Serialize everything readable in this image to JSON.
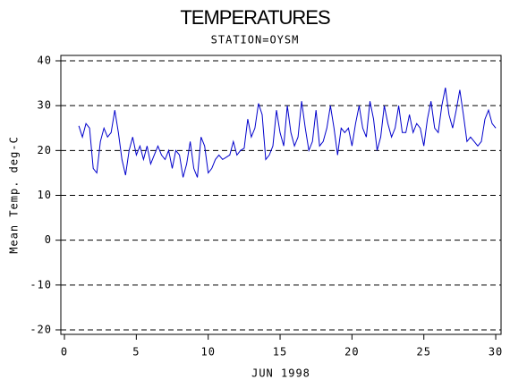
{
  "chart_data": {
    "type": "line",
    "title": "TEMPERATURES",
    "subtitle": "STATION=OYSM",
    "x_label": "JUN 1998",
    "y_label": "Mean Temp. deg-C",
    "xlim": [
      -0.25,
      30.37
    ],
    "ylim": [
      -21,
      41.2
    ],
    "xticks": [
      0,
      5,
      10,
      15,
      20,
      25,
      30
    ],
    "yticks": [
      -20,
      -10,
      0,
      10,
      20,
      30,
      40
    ],
    "grid": true,
    "series": [
      {
        "color": "#0000cc",
        "x": [
          1,
          1.25,
          1.5,
          1.75,
          2,
          2.25,
          2.5,
          2.75,
          3,
          3.25,
          3.5,
          3.75,
          4,
          4.25,
          4.5,
          4.75,
          5,
          5.25,
          5.5,
          5.75,
          6,
          6.25,
          6.5,
          6.75,
          7,
          7.25,
          7.5,
          7.75,
          8,
          8.25,
          8.5,
          8.75,
          9,
          9.25,
          9.5,
          9.75,
          10,
          10.25,
          10.5,
          10.75,
          11,
          11.25,
          11.5,
          11.75,
          12,
          12.25,
          12.5,
          12.75,
          13,
          13.25,
          13.5,
          13.75,
          14,
          14.25,
          14.5,
          14.75,
          15,
          15.25,
          15.5,
          15.75,
          16,
          16.25,
          16.5,
          16.75,
          17,
          17.25,
          17.5,
          17.75,
          18,
          18.25,
          18.5,
          18.75,
          19,
          19.25,
          19.5,
          19.75,
          20,
          20.25,
          20.5,
          20.75,
          21,
          21.25,
          21.5,
          21.75,
          22,
          22.25,
          22.5,
          22.75,
          23,
          23.25,
          23.5,
          23.75,
          24,
          24.25,
          24.5,
          24.75,
          25,
          25.25,
          25.5,
          25.75,
          26,
          26.25,
          26.5,
          26.75,
          27,
          27.25,
          27.5,
          27.75,
          28,
          28.25,
          28.5,
          28.75,
          29,
          29.25,
          29.5,
          29.75,
          30
        ],
        "values": [
          25.5,
          23,
          26,
          25,
          16,
          15,
          22,
          25,
          23,
          24,
          29,
          24,
          18,
          14.5,
          20,
          23,
          19,
          21,
          18,
          21,
          17,
          19,
          21,
          19,
          18,
          20,
          16,
          20,
          19,
          14,
          17,
          22,
          16,
          14,
          23,
          21,
          15,
          16,
          18,
          19,
          18,
          18.5,
          19,
          22,
          19,
          20,
          20.5,
          27,
          23,
          25,
          30.5,
          28,
          18,
          19,
          21,
          29,
          24,
          21,
          30,
          24,
          21,
          23,
          31,
          25,
          20,
          22,
          29,
          21,
          22,
          25,
          30,
          25,
          19,
          25,
          24,
          25,
          21,
          26,
          30,
          25,
          23,
          31,
          27,
          20,
          23,
          30,
          26,
          23,
          25,
          30,
          24,
          24,
          28,
          24,
          26,
          25,
          21,
          27,
          31,
          25,
          24,
          30,
          34,
          28,
          25,
          29,
          33.5,
          28,
          22,
          23,
          22,
          21,
          22,
          27,
          29,
          26,
          25
        ]
      }
    ]
  }
}
